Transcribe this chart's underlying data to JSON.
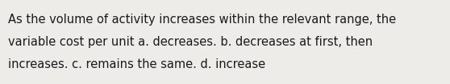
{
  "lines": [
    "As the volume of activity increases within the relevant range, the",
    "variable cost per unit a. decreases. b. decreases at first, then",
    "increases. c. remains the same. d. increase"
  ],
  "background_color": "#eeece9",
  "text_color": "#1a1a1a",
  "font_size": 10.5,
  "fig_width": 5.58,
  "fig_height": 1.05,
  "dpi": 100
}
